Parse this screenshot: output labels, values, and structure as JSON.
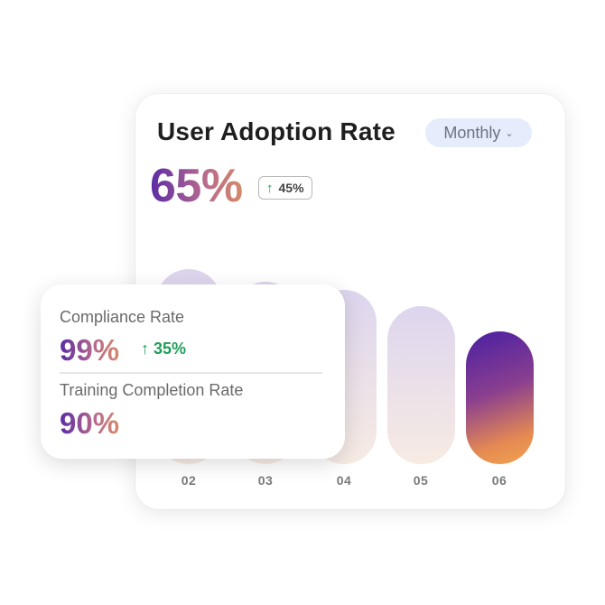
{
  "adoption_card": {
    "title": "User Adoption Rate",
    "period": "Monthly",
    "value": "65%",
    "delta": "45%",
    "colors": {
      "gradient_start": "#5b2ba6",
      "gradient_end": "#d38a68",
      "delta_positive": "#1f9d5a"
    }
  },
  "chart_data": {
    "type": "bar",
    "categories": [
      "02",
      "03",
      "04",
      "05",
      "06"
    ],
    "highlighted_category": "06",
    "relative_values": [
      0.94,
      0.88,
      0.84,
      0.76,
      0.64
    ]
  },
  "overlay_card": {
    "metrics": [
      {
        "label": "Compliance Rate",
        "value": "99%",
        "delta": "35%"
      },
      {
        "label": "Training Completion Rate",
        "value": "90%"
      }
    ],
    "icons": {
      "delta": "arrow-up-icon"
    }
  }
}
